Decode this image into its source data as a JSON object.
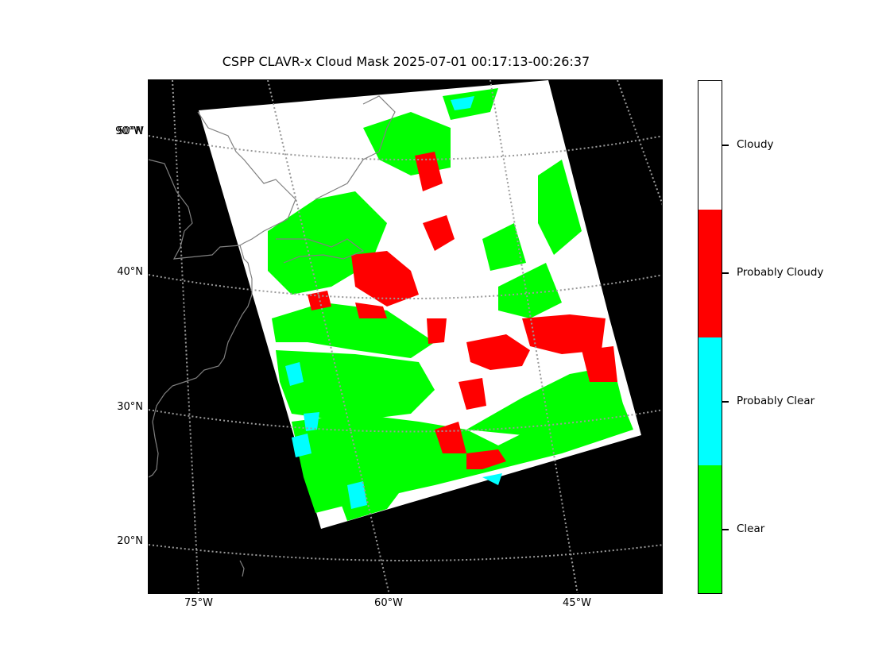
{
  "title": "CSPP CLAVR-x Cloud Mask 2025-07-01 00:17:13-00:26:37",
  "map": {
    "lat_labels": [
      {
        "text": "90°W",
        "lat": 47.2
      },
      {
        "text": "50°N",
        "lat": 47.2
      },
      {
        "text": "40°N",
        "lat": 40
      },
      {
        "text": "30°N",
        "lat": 30
      },
      {
        "text": "20°N",
        "lat": 20
      }
    ],
    "lon_labels": [
      {
        "text": "75°W",
        "lon": -75
      },
      {
        "text": "60°W",
        "lon": -60
      },
      {
        "text": "45°W",
        "lon": -45
      }
    ]
  },
  "colorbar": {
    "categories": [
      {
        "label": "Cloudy",
        "color": "#ffffff"
      },
      {
        "label": "Probably Cloudy",
        "color": "#ff0000"
      },
      {
        "label": "Probably Clear",
        "color": "#00ffff"
      },
      {
        "label": "Clear",
        "color": "#00ff00"
      }
    ]
  },
  "colors": {
    "background": "#000000",
    "coastline": "#808080",
    "gridline": "#9a9a9a"
  }
}
